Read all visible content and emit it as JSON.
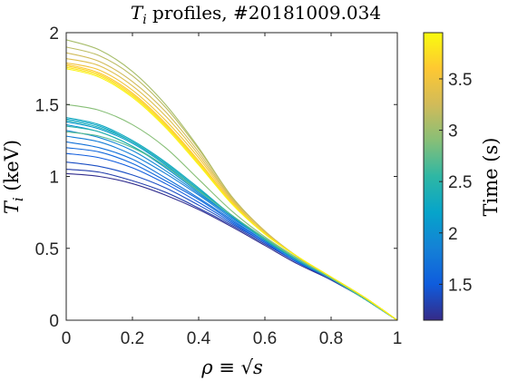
{
  "chart_data": {
    "type": "line",
    "title": "T_i profiles, #20181009.034",
    "title_parts": {
      "var": "T",
      "sub": "i",
      "rest": " profiles, #20181009.034"
    },
    "xlabel": "ρ ≡ √s",
    "xlabel_parts": {
      "rho": "ρ",
      "equiv": " ≡ ",
      "sqrt": "√",
      "s": "s"
    },
    "ylabel": "T_i (keV)",
    "ylabel_parts": {
      "var": "T",
      "sub": "i",
      "unit": " (keV)"
    },
    "xlim": [
      0,
      1
    ],
    "ylim": [
      0,
      2
    ],
    "xticks": [
      0,
      0.2,
      0.4,
      0.6,
      0.8,
      1
    ],
    "xtick_labels": [
      "0",
      "0.2",
      "0.4",
      "0.6",
      "0.8",
      "1"
    ],
    "yticks": [
      0,
      0.5,
      1,
      1.5,
      2
    ],
    "ytick_labels": [
      "0",
      "0.5",
      "1",
      "1.5",
      "2"
    ],
    "grid": false,
    "colormap": "parula",
    "colorbar": {
      "label": "Time (s)",
      "range": [
        1.15,
        3.95
      ],
      "ticks": [
        1.5,
        2,
        2.5,
        3,
        3.5
      ],
      "tick_labels": [
        "1.5",
        "2",
        "2.5",
        "3",
        "3.5"
      ],
      "colors": [
        "#352a87",
        "#0f5cdd",
        "#1481d6",
        "#06a4ca",
        "#2eb7a4",
        "#87bf77",
        "#d1bb59",
        "#fec832",
        "#f9fb0e"
      ]
    },
    "profile_rho": [
      0,
      0.1,
      0.2,
      0.3,
      0.4,
      0.5,
      0.6,
      0.7,
      0.8,
      0.9,
      1.0
    ],
    "series": [
      {
        "time": 1.18,
        "values": [
          1.02,
          1.0,
          0.95,
          0.87,
          0.77,
          0.65,
          0.52,
          0.39,
          0.28,
          0.15,
          0.0
        ]
      },
      {
        "time": 1.3,
        "values": [
          1.05,
          1.03,
          0.97,
          0.89,
          0.78,
          0.66,
          0.53,
          0.4,
          0.28,
          0.15,
          0.0
        ]
      },
      {
        "time": 1.4,
        "values": [
          1.1,
          1.07,
          1.01,
          0.92,
          0.8,
          0.67,
          0.54,
          0.4,
          0.29,
          0.15,
          0.0
        ]
      },
      {
        "time": 1.5,
        "values": [
          1.16,
          1.13,
          1.06,
          0.95,
          0.82,
          0.68,
          0.54,
          0.4,
          0.29,
          0.15,
          0.0
        ]
      },
      {
        "time": 1.6,
        "values": [
          1.2,
          1.17,
          1.09,
          0.97,
          0.84,
          0.69,
          0.55,
          0.41,
          0.29,
          0.15,
          0.0
        ]
      },
      {
        "time": 1.7,
        "values": [
          1.24,
          1.2,
          1.12,
          0.99,
          0.85,
          0.7,
          0.55,
          0.41,
          0.29,
          0.15,
          0.0
        ]
      },
      {
        "time": 1.8,
        "values": [
          1.28,
          1.24,
          1.15,
          1.02,
          0.87,
          0.71,
          0.56,
          0.41,
          0.29,
          0.15,
          0.0
        ]
      },
      {
        "time": 1.9,
        "values": [
          1.32,
          1.27,
          1.18,
          1.04,
          0.88,
          0.72,
          0.56,
          0.41,
          0.29,
          0.15,
          0.0
        ]
      },
      {
        "time": 2.0,
        "values": [
          1.36,
          1.31,
          1.21,
          1.06,
          0.89,
          0.72,
          0.56,
          0.41,
          0.29,
          0.15,
          0.0
        ]
      },
      {
        "time": 2.1,
        "values": [
          1.38,
          1.33,
          1.23,
          1.08,
          0.9,
          0.73,
          0.56,
          0.42,
          0.29,
          0.15,
          0.0
        ]
      },
      {
        "time": 2.2,
        "values": [
          1.4,
          1.35,
          1.24,
          1.09,
          0.91,
          0.73,
          0.56,
          0.42,
          0.29,
          0.15,
          0.0
        ]
      },
      {
        "time": 2.3,
        "values": [
          1.41,
          1.36,
          1.25,
          1.1,
          0.92,
          0.73,
          0.57,
          0.42,
          0.29,
          0.15,
          0.0
        ]
      },
      {
        "time": 2.4,
        "values": [
          1.39,
          1.34,
          1.24,
          1.09,
          0.91,
          0.73,
          0.56,
          0.42,
          0.29,
          0.15,
          0.0
        ]
      },
      {
        "time": 2.5,
        "values": [
          1.35,
          1.31,
          1.21,
          1.07,
          0.9,
          0.73,
          0.56,
          0.42,
          0.29,
          0.15,
          0.0
        ]
      },
      {
        "time": 2.7,
        "values": [
          1.31,
          1.28,
          1.2,
          1.07,
          0.9,
          0.73,
          0.57,
          0.42,
          0.29,
          0.15,
          0.0
        ]
      },
      {
        "time": 2.9,
        "values": [
          1.5,
          1.46,
          1.36,
          1.2,
          0.98,
          0.76,
          0.58,
          0.43,
          0.3,
          0.16,
          0.0
        ]
      },
      {
        "time": 3.05,
        "values": [
          1.95,
          1.88,
          1.73,
          1.5,
          1.2,
          0.86,
          0.62,
          0.44,
          0.3,
          0.16,
          0.0
        ]
      },
      {
        "time": 3.15,
        "values": [
          1.9,
          1.84,
          1.7,
          1.48,
          1.19,
          0.86,
          0.62,
          0.44,
          0.3,
          0.16,
          0.0
        ]
      },
      {
        "time": 3.25,
        "values": [
          1.86,
          1.8,
          1.66,
          1.45,
          1.17,
          0.85,
          0.62,
          0.44,
          0.3,
          0.16,
          0.0
        ]
      },
      {
        "time": 3.35,
        "values": [
          1.82,
          1.77,
          1.63,
          1.42,
          1.15,
          0.84,
          0.61,
          0.44,
          0.3,
          0.16,
          0.0
        ]
      },
      {
        "time": 3.5,
        "values": [
          1.79,
          1.74,
          1.6,
          1.39,
          1.13,
          0.83,
          0.61,
          0.44,
          0.3,
          0.16,
          0.0
        ]
      },
      {
        "time": 3.6,
        "values": [
          1.78,
          1.72,
          1.58,
          1.37,
          1.11,
          0.82,
          0.6,
          0.44,
          0.3,
          0.16,
          0.0
        ]
      },
      {
        "time": 3.7,
        "values": [
          1.77,
          1.71,
          1.57,
          1.36,
          1.1,
          0.82,
          0.6,
          0.44,
          0.3,
          0.16,
          0.0
        ]
      },
      {
        "time": 3.8,
        "values": [
          1.76,
          1.7,
          1.56,
          1.35,
          1.09,
          0.81,
          0.6,
          0.44,
          0.3,
          0.16,
          0.0
        ]
      },
      {
        "time": 3.9,
        "values": [
          1.75,
          1.69,
          1.55,
          1.34,
          1.08,
          0.81,
          0.6,
          0.44,
          0.3,
          0.16,
          0.0
        ]
      }
    ]
  }
}
